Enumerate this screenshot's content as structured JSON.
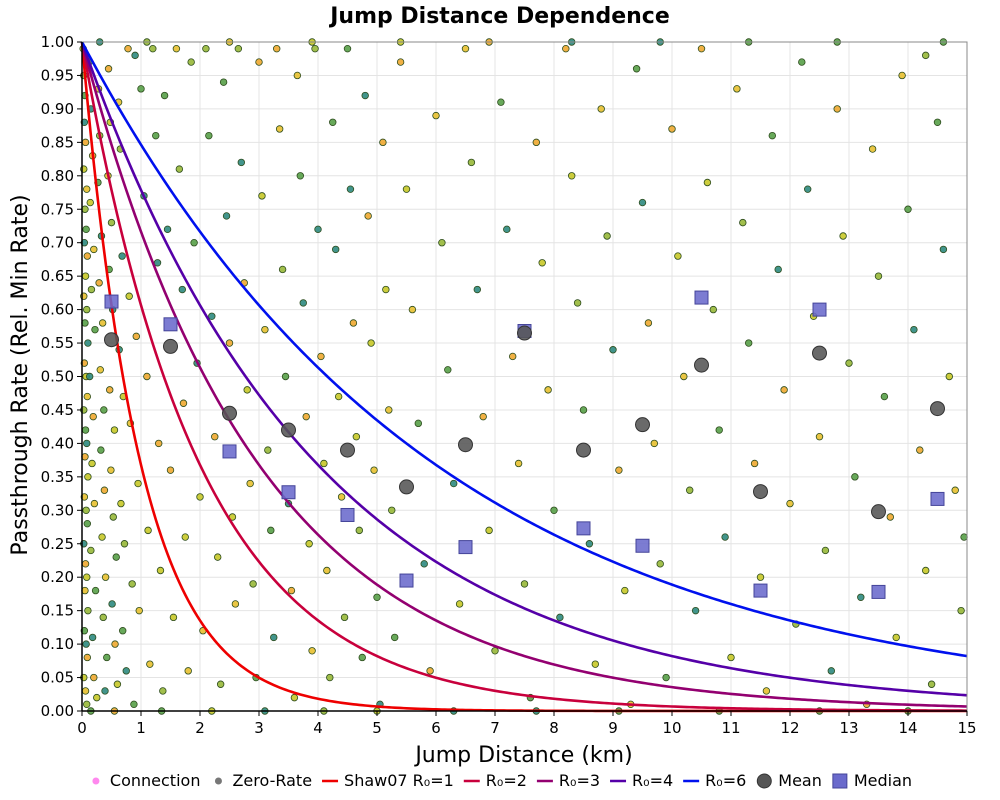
{
  "chart_data": {
    "type": "scatter",
    "title": "Jump Distance Dependence",
    "xlabel": "Jump Distance (km)",
    "ylabel": "Passthrough Rate (Rel. Min Rate)",
    "xlim": [
      0,
      15
    ],
    "ylim": [
      0,
      1
    ],
    "xticks": [
      "0",
      "1",
      "2",
      "3",
      "4",
      "5",
      "6",
      "7",
      "8",
      "9",
      "10",
      "11",
      "12",
      "13",
      "14",
      "15"
    ],
    "yticks": [
      "0.00",
      "0.05",
      "0.10",
      "0.15",
      "0.20",
      "0.25",
      "0.30",
      "0.35",
      "0.40",
      "0.45",
      "0.50",
      "0.55",
      "0.60",
      "0.65",
      "0.70",
      "0.75",
      "0.80",
      "0.85",
      "0.90",
      "0.95",
      "1.00"
    ],
    "grid": true,
    "legend_position": "bottom",
    "legend": [
      {
        "label": "Connection",
        "kind": "dot",
        "color": "#ff88ee"
      },
      {
        "label": "Zero-Rate",
        "kind": "dot",
        "color": "#777777"
      },
      {
        "label": "Shaw07 R₀=1",
        "kind": "line",
        "color": "#ee0000"
      },
      {
        "label": "R₀=2",
        "kind": "line",
        "color": "#c8003c"
      },
      {
        "label": "R₀=3",
        "kind": "line",
        "color": "#930070"
      },
      {
        "label": "R₀=4",
        "kind": "line",
        "color": "#5500a8"
      },
      {
        "label": "R₀=6",
        "kind": "line",
        "color": "#0011ee"
      },
      {
        "label": "Mean",
        "kind": "circle",
        "color": "#555555"
      },
      {
        "label": "Median",
        "kind": "square",
        "color": "#6a6acc"
      }
    ],
    "curves": [
      {
        "name": "Shaw07 R₀=1",
        "formula": "exp(-x/R0)",
        "R0": 1,
        "color": "#ee0000"
      },
      {
        "name": "R₀=2",
        "formula": "exp(-x/R0)",
        "R0": 2,
        "color": "#c8003c"
      },
      {
        "name": "R₀=3",
        "formula": "exp(-x/R0)",
        "R0": 3,
        "color": "#930070"
      },
      {
        "name": "R₀=4",
        "formula": "exp(-x/R0)",
        "R0": 4,
        "color": "#5500a8"
      },
      {
        "name": "R₀=6",
        "formula": "exp(-x/R0)",
        "R0": 6,
        "color": "#0011ee"
      }
    ],
    "mean": {
      "x": [
        0.5,
        1.5,
        2.5,
        3.5,
        4.5,
        5.5,
        6.5,
        7.5,
        8.5,
        9.5,
        10.5,
        11.5,
        12.5,
        13.5,
        14.5
      ],
      "y": [
        0.555,
        0.545,
        0.445,
        0.42,
        0.39,
        0.335,
        0.398,
        0.565,
        0.39,
        0.428,
        0.517,
        0.328,
        0.535,
        0.298,
        0.452
      ]
    },
    "median": {
      "x": [
        0.5,
        1.5,
        2.5,
        3.5,
        4.5,
        5.5,
        6.5,
        7.5,
        8.5,
        9.5,
        10.5,
        11.5,
        12.5,
        13.5,
        14.5
      ],
      "y": [
        0.612,
        0.578,
        0.388,
        0.327,
        0.293,
        0.195,
        0.245,
        0.568,
        0.273,
        0.247,
        0.618,
        0.18,
        0.6,
        0.178,
        0.317
      ]
    },
    "scatter_point_colors": [
      "#e8c030",
      "#98b838",
      "#58a048",
      "#2e8a80",
      "#f0a830",
      "#c8c828"
    ],
    "scatter_points": [
      [
        0.02,
        0.99
      ],
      [
        0.03,
        0.95
      ],
      [
        0.05,
        0.92
      ],
      [
        0.04,
        0.88
      ],
      [
        0.06,
        0.85
      ],
      [
        0.03,
        0.81
      ],
      [
        0.08,
        0.78
      ],
      [
        0.05,
        0.75
      ],
      [
        0.07,
        0.72
      ],
      [
        0.04,
        0.7
      ],
      [
        0.09,
        0.68
      ],
      [
        0.06,
        0.65
      ],
      [
        0.03,
        0.62
      ],
      [
        0.08,
        0.6
      ],
      [
        0.05,
        0.58
      ],
      [
        0.1,
        0.55
      ],
      [
        0.04,
        0.52
      ],
      [
        0.07,
        0.5
      ],
      [
        0.09,
        0.47
      ],
      [
        0.03,
        0.45
      ],
      [
        0.06,
        0.42
      ],
      [
        0.08,
        0.4
      ],
      [
        0.05,
        0.38
      ],
      [
        0.1,
        0.35
      ],
      [
        0.04,
        0.32
      ],
      [
        0.07,
        0.3
      ],
      [
        0.09,
        0.28
      ],
      [
        0.03,
        0.25
      ],
      [
        0.06,
        0.22
      ],
      [
        0.08,
        0.2
      ],
      [
        0.05,
        0.18
      ],
      [
        0.1,
        0.15
      ],
      [
        0.04,
        0.12
      ],
      [
        0.07,
        0.1
      ],
      [
        0.09,
        0.08
      ],
      [
        0.03,
        0.05
      ],
      [
        0.06,
        0.03
      ],
      [
        0.08,
        0.01
      ],
      [
        0.12,
        0.97
      ],
      [
        0.15,
        0.9
      ],
      [
        0.18,
        0.83
      ],
      [
        0.14,
        0.76
      ],
      [
        0.2,
        0.69
      ],
      [
        0.16,
        0.63
      ],
      [
        0.22,
        0.57
      ],
      [
        0.13,
        0.5
      ],
      [
        0.19,
        0.44
      ],
      [
        0.17,
        0.37
      ],
      [
        0.21,
        0.31
      ],
      [
        0.15,
        0.24
      ],
      [
        0.23,
        0.18
      ],
      [
        0.18,
        0.11
      ],
      [
        0.2,
        0.05
      ],
      [
        0.25,
        0.02
      ],
      [
        0.28,
        0.93
      ],
      [
        0.3,
        0.86
      ],
      [
        0.27,
        0.79
      ],
      [
        0.33,
        0.71
      ],
      [
        0.29,
        0.64
      ],
      [
        0.35,
        0.58
      ],
      [
        0.31,
        0.51
      ],
      [
        0.37,
        0.45
      ],
      [
        0.32,
        0.39
      ],
      [
        0.38,
        0.33
      ],
      [
        0.34,
        0.26
      ],
      [
        0.4,
        0.2
      ],
      [
        0.36,
        0.14
      ],
      [
        0.42,
        0.08
      ],
      [
        0.39,
        0.03
      ],
      [
        0.45,
        0.96
      ],
      [
        0.48,
        0.88
      ],
      [
        0.44,
        0.8
      ],
      [
        0.5,
        0.73
      ],
      [
        0.46,
        0.66
      ],
      [
        0.52,
        0.6
      ],
      [
        0.47,
        0.48
      ],
      [
        0.55,
        0.42
      ],
      [
        0.49,
        0.36
      ],
      [
        0.53,
        0.29
      ],
      [
        0.58,
        0.23
      ],
      [
        0.51,
        0.16
      ],
      [
        0.56,
        0.1
      ],
      [
        0.6,
        0.04
      ],
      [
        0.62,
        0.91
      ],
      [
        0.65,
        0.84
      ],
      [
        0.68,
        0.68
      ],
      [
        0.63,
        0.54
      ],
      [
        0.7,
        0.47
      ],
      [
        0.66,
        0.31
      ],
      [
        0.72,
        0.25
      ],
      [
        0.69,
        0.12
      ],
      [
        0.75,
        0.06
      ],
      [
        0.78,
        0.99
      ],
      [
        0.8,
        0.62
      ],
      [
        0.82,
        0.43
      ],
      [
        0.85,
        0.19
      ],
      [
        0.88,
        0.01
      ],
      [
        0.9,
        0.98
      ],
      [
        0.92,
        0.56
      ],
      [
        0.95,
        0.34
      ],
      [
        0.97,
        0.15
      ],
      [
        1.0,
        0.93
      ],
      [
        1.05,
        0.77
      ],
      [
        1.1,
        0.5
      ],
      [
        1.12,
        0.27
      ],
      [
        1.15,
        0.07
      ],
      [
        1.2,
        0.99
      ],
      [
        1.25,
        0.86
      ],
      [
        1.28,
        0.67
      ],
      [
        1.3,
        0.4
      ],
      [
        1.33,
        0.21
      ],
      [
        1.37,
        0.03
      ],
      [
        1.4,
        0.92
      ],
      [
        1.45,
        0.72
      ],
      [
        1.5,
        0.36
      ],
      [
        1.55,
        0.14
      ],
      [
        1.6,
        0.99
      ],
      [
        1.65,
        0.81
      ],
      [
        1.7,
        0.63
      ],
      [
        1.72,
        0.46
      ],
      [
        1.75,
        0.26
      ],
      [
        1.8,
        0.06
      ],
      [
        1.85,
        0.97
      ],
      [
        1.9,
        0.7
      ],
      [
        1.95,
        0.52
      ],
      [
        2.0,
        0.32
      ],
      [
        2.05,
        0.12
      ],
      [
        2.1,
        0.99
      ],
      [
        2.15,
        0.86
      ],
      [
        2.2,
        0.59
      ],
      [
        2.25,
        0.41
      ],
      [
        2.3,
        0.23
      ],
      [
        2.35,
        0.04
      ],
      [
        2.4,
        0.94
      ],
      [
        2.45,
        0.74
      ],
      [
        2.5,
        0.55
      ],
      [
        2.55,
        0.29
      ],
      [
        2.6,
        0.16
      ],
      [
        2.65,
        0.99
      ],
      [
        2.7,
        0.82
      ],
      [
        2.75,
        0.64
      ],
      [
        2.8,
        0.48
      ],
      [
        2.85,
        0.34
      ],
      [
        2.9,
        0.19
      ],
      [
        2.95,
        0.05
      ],
      [
        3.0,
        0.97
      ],
      [
        3.05,
        0.77
      ],
      [
        3.1,
        0.57
      ],
      [
        3.15,
        0.39
      ],
      [
        3.2,
        0.27
      ],
      [
        3.25,
        0.11
      ],
      [
        3.3,
        0.99
      ],
      [
        3.35,
        0.87
      ],
      [
        3.4,
        0.66
      ],
      [
        3.45,
        0.5
      ],
      [
        3.5,
        0.31
      ],
      [
        3.55,
        0.18
      ],
      [
        3.6,
        0.02
      ],
      [
        3.65,
        0.95
      ],
      [
        3.7,
        0.8
      ],
      [
        3.75,
        0.61
      ],
      [
        3.8,
        0.44
      ],
      [
        3.85,
        0.25
      ],
      [
        3.9,
        0.09
      ],
      [
        3.95,
        0.99
      ],
      [
        4.0,
        0.72
      ],
      [
        4.05,
        0.53
      ],
      [
        4.1,
        0.37
      ],
      [
        4.15,
        0.21
      ],
      [
        4.2,
        0.05
      ],
      [
        4.25,
        0.88
      ],
      [
        4.3,
        0.69
      ],
      [
        4.35,
        0.47
      ],
      [
        4.4,
        0.32
      ],
      [
        4.45,
        0.14
      ],
      [
        4.5,
        0.99
      ],
      [
        4.55,
        0.78
      ],
      [
        4.6,
        0.58
      ],
      [
        4.65,
        0.41
      ],
      [
        4.7,
        0.27
      ],
      [
        4.75,
        0.08
      ],
      [
        4.8,
        0.92
      ],
      [
        4.85,
        0.74
      ],
      [
        4.9,
        0.55
      ],
      [
        4.95,
        0.36
      ],
      [
        5.0,
        0.17
      ],
      [
        5.05,
        0.01
      ],
      [
        5.1,
        0.85
      ],
      [
        5.15,
        0.63
      ],
      [
        5.2,
        0.45
      ],
      [
        5.25,
        0.3
      ],
      [
        5.3,
        0.11
      ],
      [
        5.4,
        0.97
      ],
      [
        5.5,
        0.78
      ],
      [
        5.6,
        0.6
      ],
      [
        5.7,
        0.43
      ],
      [
        5.8,
        0.22
      ],
      [
        5.9,
        0.06
      ],
      [
        6.0,
        0.89
      ],
      [
        6.1,
        0.7
      ],
      [
        6.2,
        0.51
      ],
      [
        6.3,
        0.34
      ],
      [
        6.4,
        0.16
      ],
      [
        6.5,
        0.99
      ],
      [
        6.6,
        0.82
      ],
      [
        6.7,
        0.63
      ],
      [
        6.8,
        0.44
      ],
      [
        6.9,
        0.27
      ],
      [
        7.0,
        0.09
      ],
      [
        7.1,
        0.91
      ],
      [
        7.2,
        0.72
      ],
      [
        7.3,
        0.53
      ],
      [
        7.4,
        0.37
      ],
      [
        7.5,
        0.19
      ],
      [
        7.6,
        0.02
      ],
      [
        7.7,
        0.85
      ],
      [
        7.8,
        0.67
      ],
      [
        7.9,
        0.48
      ],
      [
        8.0,
        0.3
      ],
      [
        8.1,
        0.14
      ],
      [
        8.2,
        0.99
      ],
      [
        8.3,
        0.8
      ],
      [
        8.4,
        0.61
      ],
      [
        8.5,
        0.45
      ],
      [
        8.6,
        0.25
      ],
      [
        8.7,
        0.07
      ],
      [
        8.8,
        0.9
      ],
      [
        8.9,
        0.71
      ],
      [
        9.0,
        0.54
      ],
      [
        9.1,
        0.36
      ],
      [
        9.2,
        0.18
      ],
      [
        9.3,
        0.01
      ],
      [
        9.4,
        0.96
      ],
      [
        9.5,
        0.76
      ],
      [
        9.6,
        0.58
      ],
      [
        9.7,
        0.4
      ],
      [
        9.8,
        0.22
      ],
      [
        9.9,
        0.05
      ],
      [
        10.0,
        0.87
      ],
      [
        10.1,
        0.68
      ],
      [
        10.2,
        0.5
      ],
      [
        10.3,
        0.33
      ],
      [
        10.4,
        0.15
      ],
      [
        10.5,
        0.99
      ],
      [
        10.6,
        0.79
      ],
      [
        10.7,
        0.6
      ],
      [
        10.8,
        0.42
      ],
      [
        10.9,
        0.26
      ],
      [
        11.0,
        0.08
      ],
      [
        11.1,
        0.93
      ],
      [
        11.2,
        0.73
      ],
      [
        11.3,
        0.55
      ],
      [
        11.4,
        0.37
      ],
      [
        11.5,
        0.2
      ],
      [
        11.6,
        0.03
      ],
      [
        11.7,
        0.86
      ],
      [
        11.8,
        0.66
      ],
      [
        11.9,
        0.48
      ],
      [
        12.0,
        0.31
      ],
      [
        12.1,
        0.13
      ],
      [
        12.2,
        0.97
      ],
      [
        12.3,
        0.78
      ],
      [
        12.4,
        0.59
      ],
      [
        12.5,
        0.41
      ],
      [
        12.6,
        0.24
      ],
      [
        12.7,
        0.06
      ],
      [
        12.8,
        0.9
      ],
      [
        12.9,
        0.71
      ],
      [
        13.0,
        0.52
      ],
      [
        13.1,
        0.35
      ],
      [
        13.2,
        0.17
      ],
      [
        13.3,
        0.01
      ],
      [
        13.4,
        0.84
      ],
      [
        13.5,
        0.65
      ],
      [
        13.6,
        0.47
      ],
      [
        13.7,
        0.29
      ],
      [
        13.8,
        0.11
      ],
      [
        13.9,
        0.95
      ],
      [
        14.0,
        0.75
      ],
      [
        14.1,
        0.57
      ],
      [
        14.2,
        0.39
      ],
      [
        14.3,
        0.21
      ],
      [
        14.4,
        0.04
      ],
      [
        14.5,
        0.88
      ],
      [
        14.6,
        0.69
      ],
      [
        14.7,
        0.5
      ],
      [
        14.8,
        0.33
      ],
      [
        14.9,
        0.15
      ],
      [
        14.95,
        0.26
      ],
      [
        14.3,
        0.98
      ],
      [
        0.15,
        0.0
      ],
      [
        0.55,
        0.0
      ],
      [
        1.35,
        0.0
      ],
      [
        2.2,
        0.0
      ],
      [
        3.1,
        0.0
      ],
      [
        4.1,
        0.0
      ],
      [
        5.0,
        0.0
      ],
      [
        6.3,
        0.0
      ],
      [
        7.7,
        0.0
      ],
      [
        9.1,
        0.0
      ],
      [
        10.8,
        0.0
      ],
      [
        12.5,
        0.0
      ],
      [
        14.0,
        0.0
      ],
      [
        0.3,
        1.0
      ],
      [
        1.1,
        1.0
      ],
      [
        2.5,
        1.0
      ],
      [
        3.9,
        1.0
      ],
      [
        5.4,
        1.0
      ],
      [
        6.9,
        1.0
      ],
      [
        8.3,
        1.0
      ],
      [
        9.8,
        1.0
      ],
      [
        11.3,
        1.0
      ],
      [
        12.8,
        1.0
      ],
      [
        14.6,
        1.0
      ]
    ]
  }
}
